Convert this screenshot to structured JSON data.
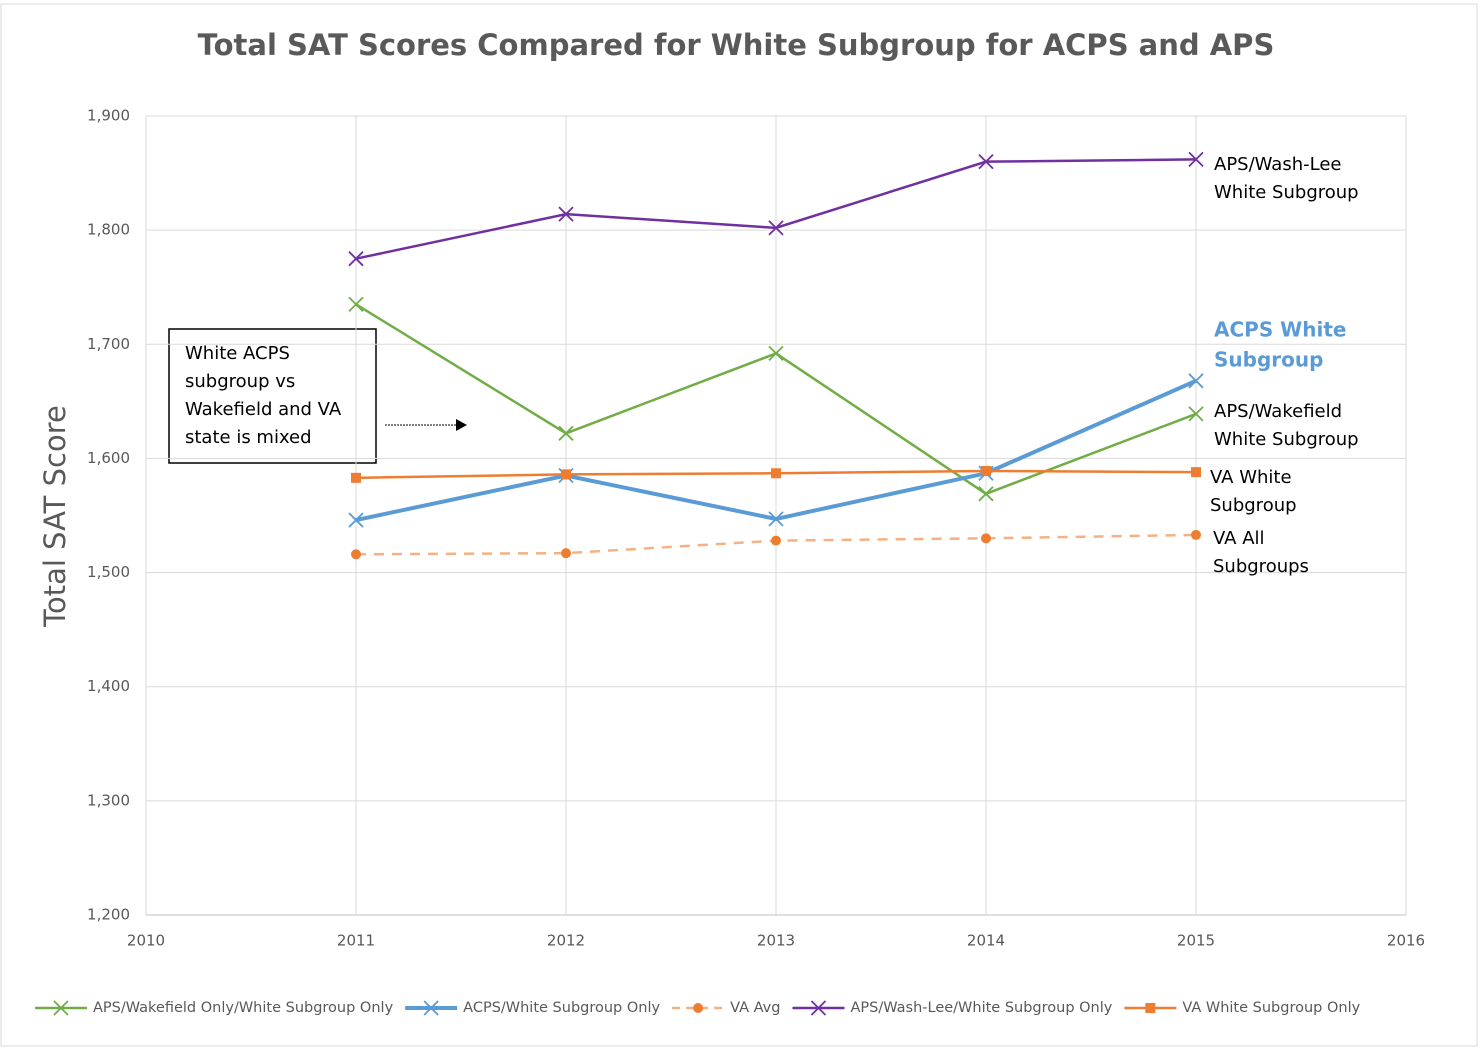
{
  "chart_data": {
    "type": "line",
    "title": "Total SAT Scores Compared for White Subgroup for ACPS and APS",
    "y_label": "Total SAT Score",
    "x": [
      2011,
      2012,
      2013,
      2014,
      2015
    ],
    "xlim": [
      2010,
      2016
    ],
    "xticks": [
      2010,
      2011,
      2012,
      2013,
      2014,
      2015,
      2016
    ],
    "ylim": [
      1200,
      1900
    ],
    "yticks": [
      {
        "value": 1200,
        "label": "1,200"
      },
      {
        "value": 1300,
        "label": "1,300"
      },
      {
        "value": 1400,
        "label": "1,400"
      },
      {
        "value": 1500,
        "label": "1,500"
      },
      {
        "value": 1600,
        "label": "1,600"
      },
      {
        "value": 1700,
        "label": "1,700"
      },
      {
        "value": 1800,
        "label": "1,800"
      },
      {
        "value": 1900,
        "label": "1,900"
      }
    ],
    "grid": true,
    "legend": "bottom",
    "series": [
      {
        "name": "APS/Wakefield Only/White Subgroup Only",
        "color": "#70ad47",
        "marker": "x",
        "values": [
          1735,
          1622,
          1692,
          1569,
          1639
        ]
      },
      {
        "name": "ACPS/White Subgroup Only",
        "color": "#5b9bd5",
        "marker": "x",
        "values": [
          1546,
          1585,
          1547,
          1587,
          1668
        ]
      },
      {
        "name": "VA Avg",
        "color": "#ed7d31",
        "line_color": "#f4b183",
        "dashed": true,
        "marker": "circle",
        "values": [
          1516,
          1517,
          1528,
          1530,
          1533
        ]
      },
      {
        "name": "APS/Wash-Lee/White Subgroup Only",
        "color": "#7030a0",
        "marker": "x",
        "values": [
          1775,
          1814,
          1802,
          1860,
          1862
        ]
      },
      {
        "name": "VA White Subgroup Only",
        "color": "#ed7d31",
        "marker": "square",
        "values": [
          1583,
          1586,
          1587,
          1589,
          1588
        ]
      }
    ],
    "annotations": [
      {
        "lines": [
          "APS/Wash-Lee",
          "White Subgroup"
        ]
      },
      {
        "lines": [
          "ACPS White",
          "Subgroup"
        ]
      },
      {
        "lines": [
          "APS/Wakefield",
          "White Subgroup"
        ]
      },
      {
        "lines": [
          "VA White",
          "Subgroup"
        ]
      },
      {
        "lines": [
          "VA All",
          "Subgroups"
        ]
      },
      {
        "lines": [
          "White ACPS",
          "subgroup vs",
          "Wakefield and VA",
          "state is mixed"
        ]
      }
    ]
  }
}
